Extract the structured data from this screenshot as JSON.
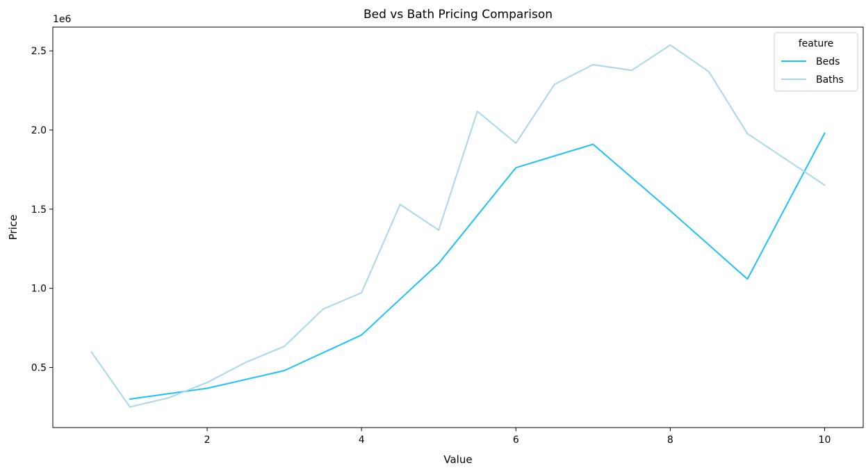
{
  "chart_data": {
    "type": "line",
    "title": "Bed vs Bath Pricing Comparison",
    "xlabel": "Value",
    "ylabel": "Price",
    "y_offset_label": "1e6",
    "xlim": [
      0.0,
      10.5
    ],
    "ylim": [
      120000,
      2650000
    ],
    "x_ticks": [
      2,
      4,
      6,
      8,
      10
    ],
    "x_tick_labels": [
      "2",
      "4",
      "6",
      "8",
      "10"
    ],
    "y_ticks": [
      500000,
      1000000,
      1500000,
      2000000,
      2500000
    ],
    "y_tick_labels": [
      "0.5",
      "1.0",
      "1.5",
      "2.0",
      "2.5"
    ],
    "grid": false,
    "legend": {
      "title": "feature",
      "position": "top-right"
    },
    "series": [
      {
        "name": "Beds",
        "color": "#1ec1f7",
        "x": [
          1,
          2,
          3,
          4,
          5,
          6,
          7,
          8,
          9,
          10
        ],
        "y": [
          300000,
          368000,
          480000,
          705000,
          1158000,
          1762000,
          1910000,
          1490000,
          1058000,
          1980000
        ]
      },
      {
        "name": "Baths",
        "color": "#a8d8e8",
        "x": [
          0.5,
          1,
          1.5,
          2,
          2.5,
          3,
          3.5,
          4,
          4.5,
          5,
          5.5,
          6,
          6.5,
          7,
          7.5,
          8,
          8.5,
          9,
          10
        ],
        "y": [
          598000,
          250000,
          308000,
          405000,
          532000,
          633000,
          868000,
          972000,
          1530000,
          1368000,
          2118000,
          1917000,
          2288000,
          2413000,
          2377000,
          2537000,
          2368000,
          1977000,
          1652000
        ]
      }
    ]
  }
}
